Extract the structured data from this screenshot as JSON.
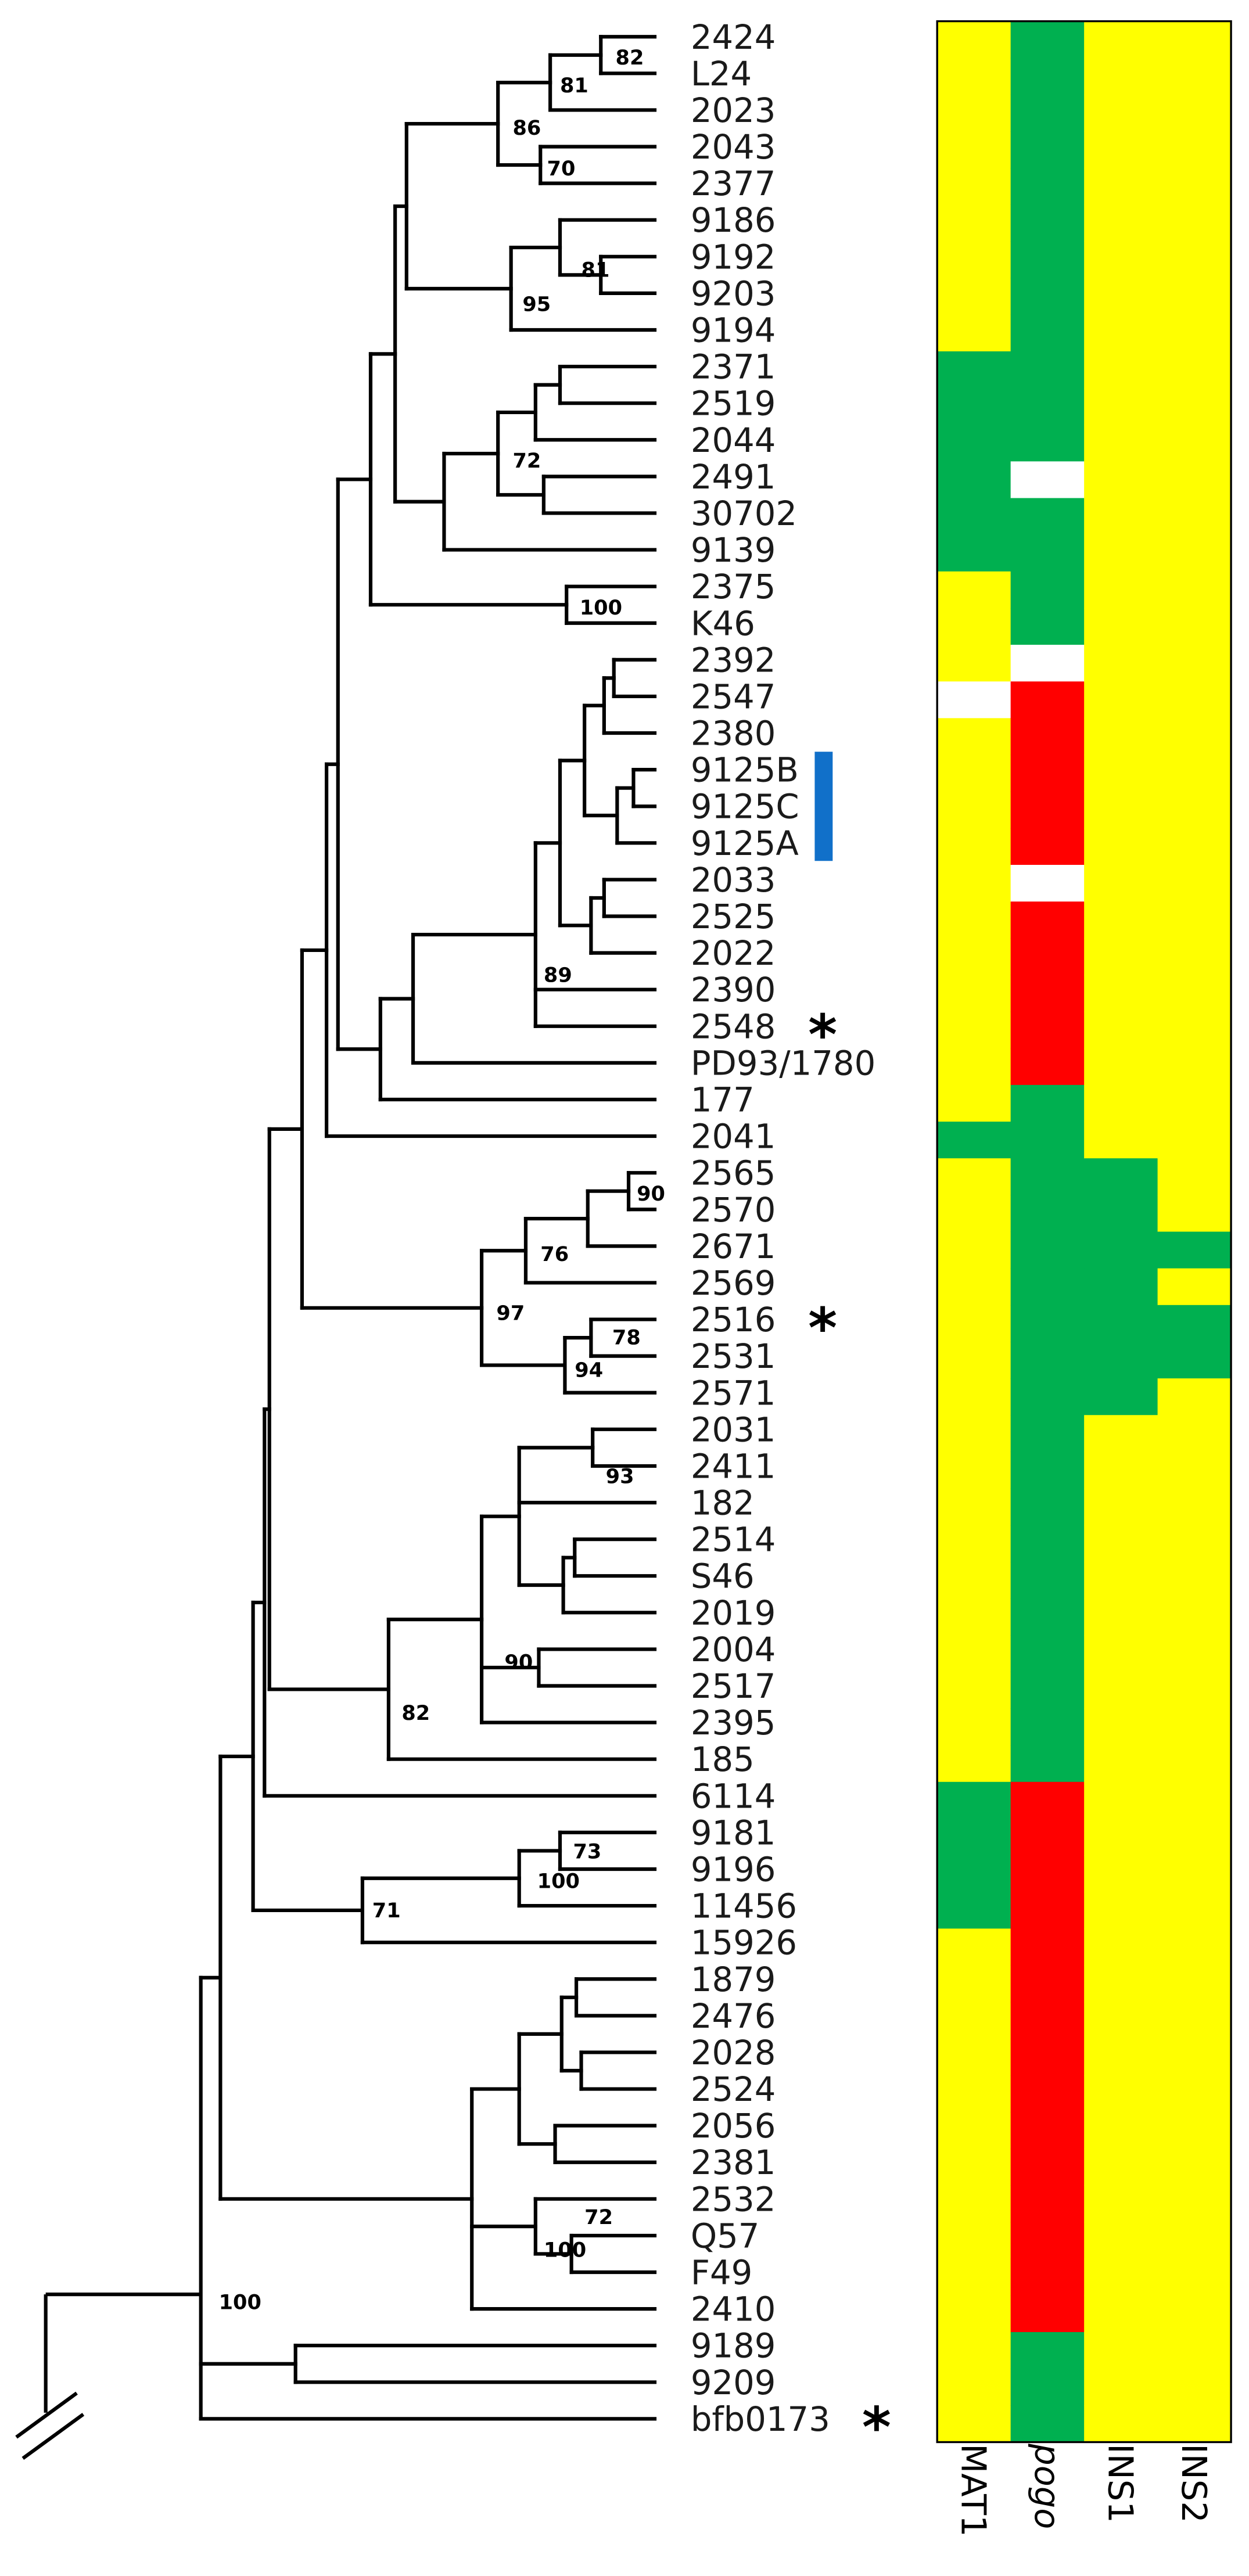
{
  "taxa": [
    "2424",
    "L24",
    "2023",
    "2043",
    "2377",
    "9186",
    "9192",
    "9203",
    "9194",
    "2371",
    "2519",
    "2044",
    "2491",
    "30702",
    "9139",
    "2375",
    "K46",
    "2392",
    "2547",
    "2380",
    "9125B",
    "9125C",
    "9125A",
    "2033",
    "2525",
    "2022",
    "2390",
    "2548",
    "PD93/1780",
    "177",
    "2041",
    "2565",
    "2570",
    "2671",
    "2569",
    "2516",
    "2531",
    "2571",
    "2031",
    "2411",
    "182",
    "2514",
    "S46",
    "2019",
    "2004",
    "2517",
    "2395",
    "185",
    "6114",
    "9181",
    "9196",
    "11456",
    "15926",
    "1879",
    "2476",
    "2028",
    "2524",
    "2056",
    "2381",
    "2532",
    "Q57",
    "F49",
    "2410",
    "9189",
    "9209",
    "bfb0173"
  ],
  "bootstrap": [
    {
      "node": "2424+L24",
      "value": "82"
    },
    {
      "node": "2424+L24+2023",
      "value": "81"
    },
    {
      "node": "2424..2377",
      "value": "86"
    },
    {
      "node": "2043+2377",
      "value": "70"
    },
    {
      "node": "9192+9203",
      "value": "81"
    },
    {
      "node": "9186..9194",
      "value": "95"
    },
    {
      "node": "2371..30702",
      "value": "72"
    },
    {
      "node": "2375+K46",
      "value": "100"
    },
    {
      "node": "2392..2390",
      "value": "89"
    },
    {
      "node": "2565+2570",
      "value": "90"
    },
    {
      "node": "2565..2671",
      "value": "76"
    },
    {
      "node": "2565..2571",
      "value": "97"
    },
    {
      "node": "2516+2531",
      "value": "78"
    },
    {
      "node": "2516..2571",
      "value": "94"
    },
    {
      "node": "2031+2411",
      "value": "93"
    },
    {
      "node": "2004+2517",
      "value": "90"
    },
    {
      "node": "2031..185",
      "value": "82"
    },
    {
      "node": "9181+9196",
      "value": "73"
    },
    {
      "node": "9181..11456",
      "value": "100"
    },
    {
      "node": "9181..15926",
      "value": "71"
    },
    {
      "node": "Q57+F49",
      "value": "72"
    },
    {
      "node": "2532..F49",
      "value": "100"
    },
    {
      "node": "ingroup",
      "value": "100"
    }
  ],
  "markers": [
    {
      "taxon": "2548",
      "symbol": "*"
    },
    {
      "taxon": "2516",
      "symbol": "*"
    },
    {
      "taxon": "bfb0173",
      "symbol": "*"
    }
  ],
  "highlight_group": {
    "taxa": [
      "9125B",
      "9125C",
      "9125A"
    ],
    "color": "#1170c9"
  },
  "colors": {
    "present": "#ffff00",
    "absent": "#00b050",
    "variant": "#ff0000",
    "missing": "#ffffff"
  },
  "columns": [
    {
      "label": "MAT1",
      "italic": false,
      "states": [
        "Y",
        "Y",
        "Y",
        "Y",
        "Y",
        "Y",
        "Y",
        "Y",
        "Y",
        "G",
        "G",
        "G",
        "G",
        "G",
        "G",
        "Y",
        "Y",
        "Y",
        "W",
        "Y",
        "Y",
        "Y",
        "Y",
        "Y",
        "Y",
        "Y",
        "Y",
        "Y",
        "Y",
        "Y",
        "G",
        "Y",
        "Y",
        "Y",
        "Y",
        "Y",
        "Y",
        "Y",
        "Y",
        "Y",
        "Y",
        "Y",
        "Y",
        "Y",
        "Y",
        "Y",
        "Y",
        "Y",
        "G",
        "G",
        "G",
        "G",
        "Y",
        "Y",
        "Y",
        "Y",
        "Y",
        "Y",
        "Y",
        "Y",
        "Y",
        "Y",
        "Y",
        "Y",
        "Y",
        "Y"
      ]
    },
    {
      "label": "pogo",
      "italic": true,
      "states": [
        "G",
        "G",
        "G",
        "G",
        "G",
        "G",
        "G",
        "G",
        "G",
        "G",
        "G",
        "G",
        "W",
        "G",
        "G",
        "G",
        "G",
        "W",
        "R",
        "R",
        "R",
        "R",
        "R",
        "W",
        "R",
        "R",
        "R",
        "R",
        "R",
        "G",
        "G",
        "G",
        "G",
        "G",
        "G",
        "G",
        "G",
        "G",
        "G",
        "G",
        "G",
        "G",
        "G",
        "G",
        "G",
        "G",
        "G",
        "G",
        "R",
        "R",
        "R",
        "R",
        "R",
        "R",
        "R",
        "R",
        "R",
        "R",
        "R",
        "R",
        "R",
        "R",
        "R",
        "G",
        "G",
        "G"
      ]
    },
    {
      "label": "INS1",
      "italic": false,
      "states": [
        "Y",
        "Y",
        "Y",
        "Y",
        "Y",
        "Y",
        "Y",
        "Y",
        "Y",
        "Y",
        "Y",
        "Y",
        "Y",
        "Y",
        "Y",
        "Y",
        "Y",
        "Y",
        "Y",
        "Y",
        "Y",
        "Y",
        "Y",
        "Y",
        "Y",
        "Y",
        "Y",
        "Y",
        "Y",
        "Y",
        "Y",
        "G",
        "G",
        "G",
        "G",
        "G",
        "G",
        "G",
        "Y",
        "Y",
        "Y",
        "Y",
        "Y",
        "Y",
        "Y",
        "Y",
        "Y",
        "Y",
        "Y",
        "Y",
        "Y",
        "Y",
        "Y",
        "Y",
        "Y",
        "Y",
        "Y",
        "Y",
        "Y",
        "Y",
        "Y",
        "Y",
        "Y",
        "Y",
        "Y",
        "Y"
      ]
    },
    {
      "label": "INS2",
      "italic": false,
      "states": [
        "Y",
        "Y",
        "Y",
        "Y",
        "Y",
        "Y",
        "Y",
        "Y",
        "Y",
        "Y",
        "Y",
        "Y",
        "Y",
        "Y",
        "Y",
        "Y",
        "Y",
        "Y",
        "Y",
        "Y",
        "Y",
        "Y",
        "Y",
        "Y",
        "Y",
        "Y",
        "Y",
        "Y",
        "Y",
        "Y",
        "Y",
        "Y",
        "Y",
        "G",
        "Y",
        "G",
        "G",
        "Y",
        "Y",
        "Y",
        "Y",
        "Y",
        "Y",
        "Y",
        "Y",
        "Y",
        "Y",
        "Y",
        "Y",
        "Y",
        "Y",
        "Y",
        "Y",
        "Y",
        "Y",
        "Y",
        "Y",
        "Y",
        "Y",
        "Y",
        "Y",
        "Y",
        "Y",
        "Y",
        "Y",
        "Y"
      ]
    }
  ]
}
